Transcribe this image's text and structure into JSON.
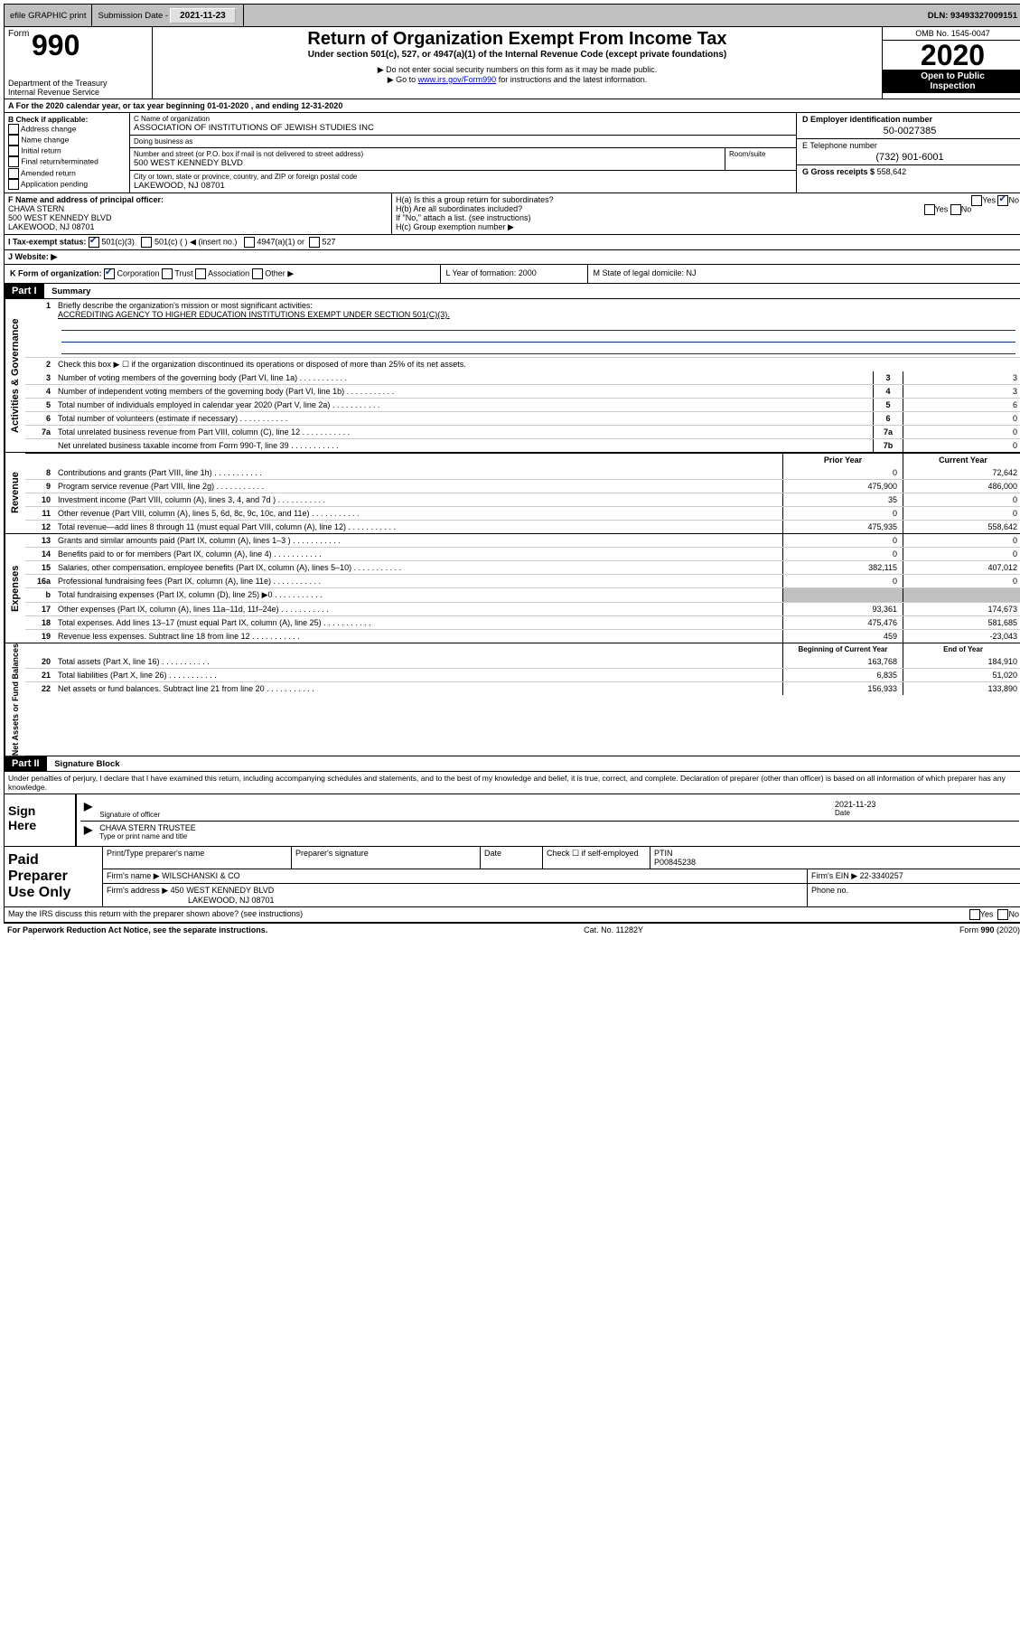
{
  "colors": {
    "topbar_bg": "#c0c0c0",
    "black": "#000000",
    "white": "#ffffff",
    "link": "#0000cc",
    "fill_line": "#003399",
    "grey_cell": "#c0c0c0"
  },
  "topbar": {
    "efile": "efile GRAPHIC print",
    "submission_label": "Submission Date - ",
    "submission_date": "2021-11-23",
    "dln": "DLN: 93493327009151"
  },
  "header": {
    "form_word": "Form",
    "form_num": "990",
    "dept1": "Department of the Treasury",
    "dept2": "Internal Revenue Service",
    "title": "Return of Organization Exempt From Income Tax",
    "subtitle": "Under section 501(c), 527, or 4947(a)(1) of the Internal Revenue Code (except private foundations)",
    "note1": "▶ Do not enter social security numbers on this form as it may be made public.",
    "note2_a": "▶ Go to ",
    "note2_link": "www.irs.gov/Form990",
    "note2_b": " for instructions and the latest information.",
    "omb": "OMB No. 1545-0047",
    "year": "2020",
    "inspect1": "Open to Public",
    "inspect2": "Inspection"
  },
  "row_a": "A For the 2020 calendar year, or tax year beginning 01-01-2020   , and ending 12-31-2020",
  "section_b": {
    "label": "B Check if applicable:",
    "items": [
      "Address change",
      "Name change",
      "Initial return",
      "Final return/terminated",
      "Amended return",
      "Application pending"
    ]
  },
  "section_c": {
    "name_label": "C Name of organization",
    "name": "ASSOCIATION OF INSTITUTIONS OF JEWISH STUDIES INC",
    "dba_label": "Doing business as",
    "dba": "",
    "addr_label": "Number and street (or P.O. box if mail is not delivered to street address)",
    "room_label": "Room/suite",
    "addr": "500 WEST KENNEDY BLVD",
    "city_label": "City or town, state or province, country, and ZIP or foreign postal code",
    "city": "LAKEWOOD, NJ  08701"
  },
  "section_d": {
    "ein_label": "D Employer identification number",
    "ein": "50-0027385",
    "phone_label": "E Telephone number",
    "phone": "(732) 901-6001",
    "gross_label": "G Gross receipts $",
    "gross": "558,642"
  },
  "section_f": {
    "label": "F Name and address of principal officer:",
    "name": "CHAVA STERN",
    "addr1": "500 WEST KENNEDY BLVD",
    "addr2": "LAKEWOOD, NJ  08701"
  },
  "section_h": {
    "ha": "H(a)  Is this a group return for subordinates?",
    "ha_yes": "Yes",
    "ha_no": "No",
    "hb": "H(b)  Are all subordinates included?",
    "hb_yes": "Yes",
    "hb_no": "No",
    "hb_note": "If \"No,\" attach a list. (see instructions)",
    "hc": "H(c)  Group exemption number ▶"
  },
  "line_i": {
    "label": "I   Tax-exempt status:",
    "opt1": "501(c)(3)",
    "opt2": "501(c) (  )  ◀ (insert no.)",
    "opt3": "4947(a)(1) or",
    "opt4": "527"
  },
  "line_j": "J   Website: ▶",
  "line_k": {
    "label": "K Form of organization:",
    "opts": [
      "Corporation",
      "Trust",
      "Association",
      "Other ▶"
    ],
    "L": "L Year of formation: 2000",
    "M": "M State of legal domicile: NJ"
  },
  "part1": {
    "header": "Part I",
    "title": "Summary",
    "vtab1": "Activities & Governance",
    "vtab2": "Revenue",
    "vtab3": "Expenses",
    "vtab4": "Net Assets or Fund Balances",
    "l1_label": "Briefly describe the organization's mission or most significant activities:",
    "l1_text": "ACCREDITING AGENCY TO HIGHER EDUCATION INSTITUTIONS EXEMPT UNDER SECTION 501(C)(3).",
    "l2": "Check this box ▶ ☐  if the organization discontinued its operations or disposed of more than 25% of its net assets.",
    "lines_gov": [
      {
        "n": "3",
        "t": "Number of voting members of the governing body (Part VI, line 1a)",
        "box": "3",
        "v": "3"
      },
      {
        "n": "4",
        "t": "Number of independent voting members of the governing body (Part VI, line 1b)",
        "box": "4",
        "v": "3"
      },
      {
        "n": "5",
        "t": "Total number of individuals employed in calendar year 2020 (Part V, line 2a)",
        "box": "5",
        "v": "6"
      },
      {
        "n": "6",
        "t": "Total number of volunteers (estimate if necessary)",
        "box": "6",
        "v": "0"
      },
      {
        "n": "7a",
        "t": "Total unrelated business revenue from Part VIII, column (C), line 12",
        "box": "7a",
        "v": "0"
      },
      {
        "n": "",
        "t": "Net unrelated business taxable income from Form 990-T, line 39",
        "box": "7b",
        "v": "0"
      }
    ],
    "hdr_prior": "Prior Year",
    "hdr_current": "Current Year",
    "lines_rev": [
      {
        "n": "8",
        "t": "Contributions and grants (Part VIII, line 1h)",
        "p": "0",
        "c": "72,642"
      },
      {
        "n": "9",
        "t": "Program service revenue (Part VIII, line 2g)",
        "p": "475,900",
        "c": "486,000"
      },
      {
        "n": "10",
        "t": "Investment income (Part VIII, column (A), lines 3, 4, and 7d )",
        "p": "35",
        "c": "0"
      },
      {
        "n": "11",
        "t": "Other revenue (Part VIII, column (A), lines 5, 6d, 8c, 9c, 10c, and 11e)",
        "p": "0",
        "c": "0"
      },
      {
        "n": "12",
        "t": "Total revenue—add lines 8 through 11 (must equal Part VIII, column (A), line 12)",
        "p": "475,935",
        "c": "558,642"
      }
    ],
    "lines_exp": [
      {
        "n": "13",
        "t": "Grants and similar amounts paid (Part IX, column (A), lines 1–3 )",
        "p": "0",
        "c": "0"
      },
      {
        "n": "14",
        "t": "Benefits paid to or for members (Part IX, column (A), line 4)",
        "p": "0",
        "c": "0"
      },
      {
        "n": "15",
        "t": "Salaries, other compensation, employee benefits (Part IX, column (A), lines 5–10)",
        "p": "382,115",
        "c": "407,012"
      },
      {
        "n": "16a",
        "t": "Professional fundraising fees (Part IX, column (A), line 11e)",
        "p": "0",
        "c": "0"
      },
      {
        "n": "b",
        "t": "Total fundraising expenses (Part IX, column (D), line 25) ▶0",
        "p": "grey",
        "c": "grey"
      },
      {
        "n": "17",
        "t": "Other expenses (Part IX, column (A), lines 11a–11d, 11f–24e)",
        "p": "93,361",
        "c": "174,673"
      },
      {
        "n": "18",
        "t": "Total expenses. Add lines 13–17 (must equal Part IX, column (A), line 25)",
        "p": "475,476",
        "c": "581,685"
      },
      {
        "n": "19",
        "t": "Revenue less expenses. Subtract line 18 from line 12",
        "p": "459",
        "c": "-23,043"
      }
    ],
    "hdr_begin": "Beginning of Current Year",
    "hdr_end": "End of Year",
    "lines_net": [
      {
        "n": "20",
        "t": "Total assets (Part X, line 16)",
        "p": "163,768",
        "c": "184,910"
      },
      {
        "n": "21",
        "t": "Total liabilities (Part X, line 26)",
        "p": "6,835",
        "c": "51,020"
      },
      {
        "n": "22",
        "t": "Net assets or fund balances. Subtract line 21 from line 20",
        "p": "156,933",
        "c": "133,890"
      }
    ]
  },
  "part2": {
    "header": "Part II",
    "title": "Signature Block",
    "declaration": "Under penalties of perjury, I declare that I have examined this return, including accompanying schedules and statements, and to the best of my knowledge and belief, it is true, correct, and complete. Declaration of preparer (other than officer) is based on all information of which preparer has any knowledge."
  },
  "sign": {
    "label1": "Sign",
    "label2": "Here",
    "sig_of": "Signature of officer",
    "date_label": "Date",
    "date": "2021-11-23",
    "name": "CHAVA STERN  TRUSTEE",
    "type_label": "Type or print name and title"
  },
  "preparer": {
    "label1": "Paid",
    "label2": "Preparer",
    "label3": "Use Only",
    "c1": "Print/Type preparer's name",
    "c2": "Preparer's signature",
    "c3": "Date",
    "c4a": "Check ☐  if self-employed",
    "c5_label": "PTIN",
    "c5": "P00845238",
    "firm_label": "Firm's name     ▶",
    "firm": "WILSCHANSKI & CO",
    "ein_label": "Firm's EIN ▶",
    "ein": "22-3340257",
    "addr_label": "Firm's address ▶",
    "addr1": "450 WEST KENNEDY BLVD",
    "addr2": "LAKEWOOD, NJ  08701",
    "phone_label": "Phone no."
  },
  "discuss": {
    "text": "May the IRS discuss this return with the preparer shown above? (see instructions)",
    "yes": "Yes",
    "no": "No"
  },
  "footer": {
    "left": "For Paperwork Reduction Act Notice, see the separate instructions.",
    "mid": "Cat. No. 11282Y",
    "right": "Form 990 (2020)"
  }
}
